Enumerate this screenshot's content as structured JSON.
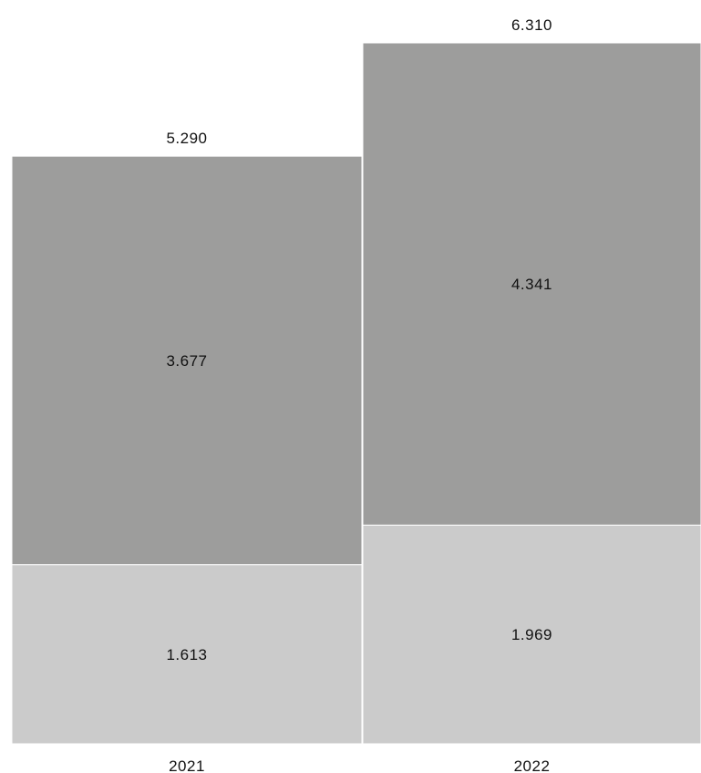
{
  "chart_data": {
    "type": "bar",
    "stacked": true,
    "categories": [
      "2021",
      "2022"
    ],
    "series": [
      {
        "values": [
          1.613,
          1.969
        ],
        "labels": [
          "1.613",
          "1.969"
        ],
        "color": "#cbcbcb"
      },
      {
        "values": [
          3.677,
          4.341
        ],
        "labels": [
          "3.677",
          "4.341"
        ],
        "color": "#9d9d9c"
      }
    ],
    "totals": [
      5.29,
      6.31
    ],
    "total_labels": [
      "5.290",
      "6.310"
    ],
    "title": "",
    "xlabel": "",
    "ylabel": "",
    "ylim": [
      0,
      6.31
    ],
    "grid": false,
    "legend": "none"
  }
}
